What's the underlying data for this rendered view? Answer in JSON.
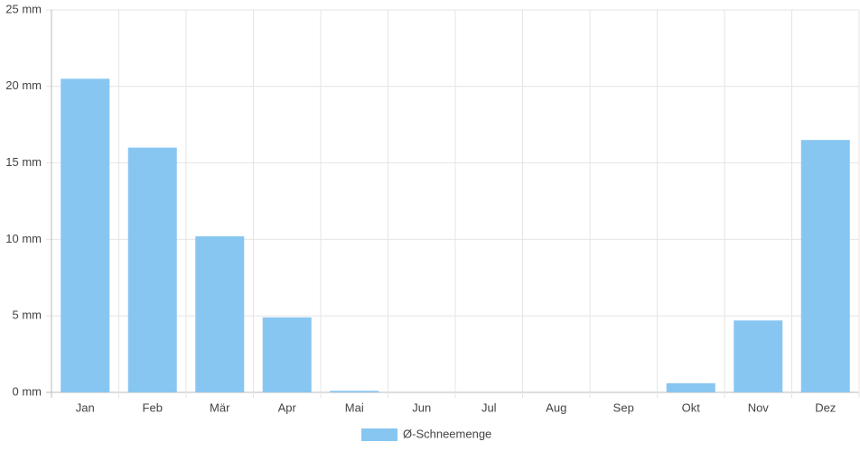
{
  "chart_data": {
    "type": "bar",
    "categories": [
      "Jan",
      "Feb",
      "Mär",
      "Apr",
      "Mai",
      "Jun",
      "Jul",
      "Aug",
      "Sep",
      "Okt",
      "Nov",
      "Dez"
    ],
    "series": [
      {
        "name": "Ø-Schneemenge",
        "color": "#88c6f2",
        "values": [
          20.5,
          16,
          10.2,
          4.9,
          0.1,
          0,
          0,
          0,
          0,
          0.6,
          4.7,
          16.5
        ]
      }
    ],
    "ylim": [
      0,
      25
    ],
    "yticks": [
      {
        "value": 0,
        "label": "0 mm"
      },
      {
        "value": 5,
        "label": "5 mm"
      },
      {
        "value": 10,
        "label": "10 mm"
      },
      {
        "value": 15,
        "label": "15 mm"
      },
      {
        "value": 20,
        "label": "20 mm"
      },
      {
        "value": 25,
        "label": "25 mm"
      }
    ],
    "grid": true,
    "legend": "bottom"
  }
}
